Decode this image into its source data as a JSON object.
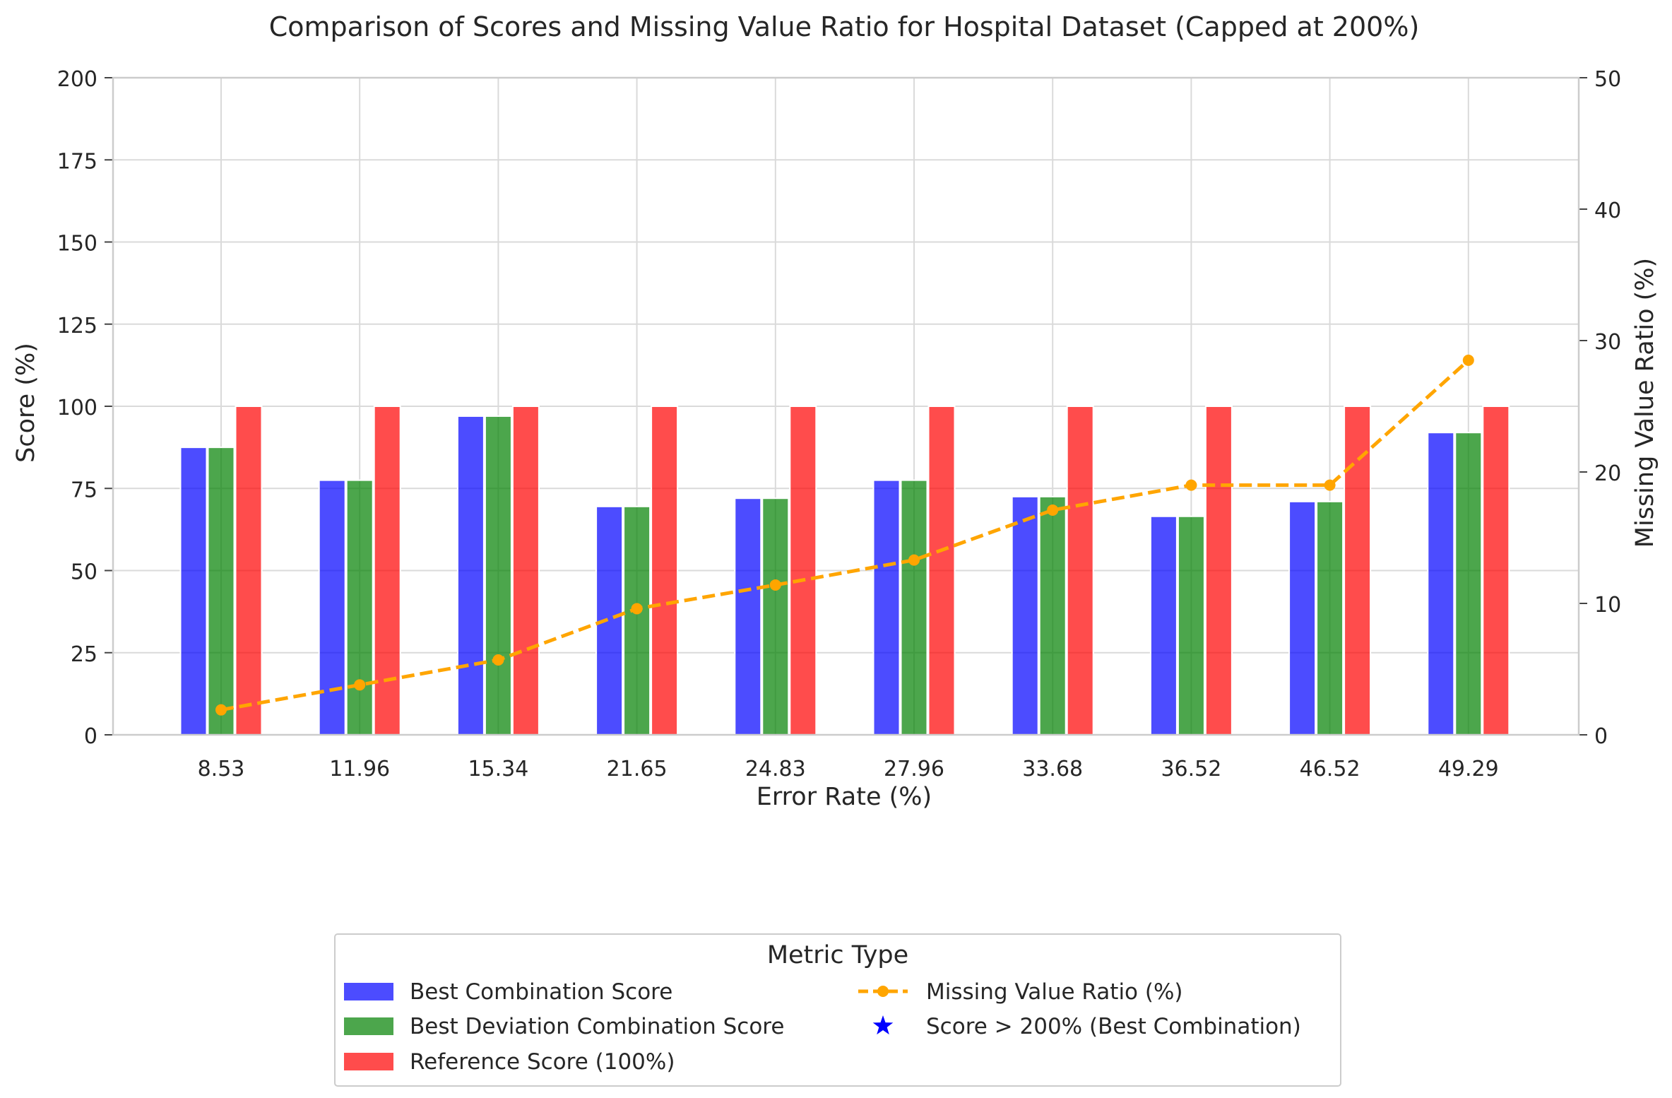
{
  "chart_data": {
    "type": "bar",
    "title": "Comparison of Scores and Missing Value Ratio for Hospital Dataset (Capped at 200%)",
    "xlabel": "Error Rate (%)",
    "ylabel": "Score (%)",
    "y2label": "Missing Value Ratio (%)",
    "ylim": [
      0,
      200
    ],
    "y2lim": [
      0,
      50
    ],
    "yticks": [
      0,
      25,
      50,
      75,
      100,
      125,
      150,
      175,
      200
    ],
    "y2ticks": [
      0,
      10,
      20,
      30,
      40,
      50
    ],
    "grid": true,
    "categories": [
      "8.53",
      "11.96",
      "15.34",
      "21.65",
      "24.83",
      "27.96",
      "33.68",
      "36.52",
      "46.52",
      "49.29"
    ],
    "series": [
      {
        "name": "Best Combination Score",
        "type": "bar",
        "axis": "left",
        "color": "#0000ff",
        "values": [
          87.5,
          77.5,
          97.0,
          69.5,
          72.0,
          77.5,
          72.5,
          66.5,
          71.0,
          92.0
        ]
      },
      {
        "name": "Best Deviation Combination Score",
        "type": "bar",
        "axis": "left",
        "color": "#008000",
        "values": [
          87.5,
          77.5,
          97.0,
          69.5,
          72.0,
          77.5,
          72.5,
          66.5,
          71.0,
          92.0
        ]
      },
      {
        "name": "Reference Score (100%)",
        "type": "bar",
        "axis": "left",
        "color": "#ff0000",
        "values": [
          100,
          100,
          100,
          100,
          100,
          100,
          100,
          100,
          100,
          100
        ]
      },
      {
        "name": "Missing Value Ratio (%)",
        "type": "line",
        "axis": "right",
        "color": "#ffa500",
        "linestyle": "dashed",
        "marker": "circle",
        "values": [
          1.9,
          3.8,
          5.7,
          9.6,
          11.4,
          13.3,
          17.1,
          19.0,
          19.0,
          28.5
        ]
      }
    ],
    "legend": {
      "title": "Metric Type",
      "placement": "below-center",
      "entries": [
        {
          "label": "Best Combination Score",
          "kind": "bar",
          "color": "#0000ff"
        },
        {
          "label": "Best Deviation Combination Score",
          "kind": "bar",
          "color": "#008000"
        },
        {
          "label": "Reference Score (100%)",
          "kind": "bar",
          "color": "#ff0000"
        },
        {
          "label": "Missing Value Ratio (%)",
          "kind": "line",
          "color": "#ffa500"
        },
        {
          "label": "Score > 200% (Best Combination)",
          "kind": "star",
          "color": "#0000ff"
        }
      ]
    }
  }
}
